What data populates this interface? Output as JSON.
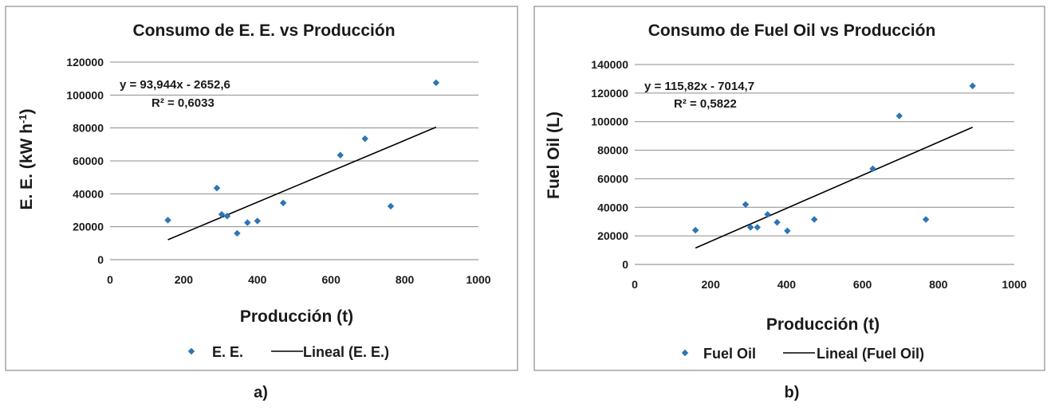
{
  "chart_data": [
    {
      "type": "scatter",
      "panel_label": "a)",
      "title": "Consumo de E. E. vs Producción",
      "xlabel": "Producción (t)",
      "ylabel_main": "E. E. (kW h",
      "ylabel_sup": "-1",
      "ylabel_close": ")",
      "xlim": [
        0,
        1000
      ],
      "ylim": [
        0,
        120000
      ],
      "xticks": [
        0,
        200,
        400,
        600,
        800,
        1000
      ],
      "yticks": [
        0,
        20000,
        40000,
        60000,
        80000,
        100000,
        120000
      ],
      "grid": "horizontal",
      "legend": "bottom",
      "series": [
        {
          "name": "E. E.",
          "marker_color": "#2e75b6",
          "points": [
            [
              157,
              24000
            ],
            [
              290,
              43500
            ],
            [
              303,
              27500
            ],
            [
              318,
              26500
            ],
            [
              345,
              16000
            ],
            [
              373,
              22500
            ],
            [
              400,
              23500
            ],
            [
              470,
              34500
            ],
            [
              625,
              63500
            ],
            [
              692,
              73500
            ],
            [
              762,
              32500
            ],
            [
              885,
              107500
            ]
          ]
        }
      ],
      "trendline": {
        "name": "Lineal (E. E.)",
        "slope": 93.944,
        "intercept": -2652.6,
        "x_range": [
          157,
          885
        ],
        "equation": "y = 93,944x  - 2652,6",
        "r2": "R² = 0,6033"
      }
    },
    {
      "type": "scatter",
      "panel_label": "b)",
      "title": "Consumo de Fuel Oil vs Producción",
      "xlabel": "Producción (t)",
      "ylabel": "Fuel  Oil (L)",
      "xlim": [
        0,
        1000
      ],
      "ylim": [
        0,
        140000
      ],
      "xticks": [
        0,
        200,
        400,
        600,
        800,
        1000
      ],
      "yticks": [
        0,
        20000,
        40000,
        60000,
        80000,
        100000,
        120000,
        140000
      ],
      "grid": "horizontal",
      "legend": "bottom",
      "series": [
        {
          "name": "Fuel Oil",
          "marker_color": "#2e75b6",
          "points": [
            [
              160,
              24000
            ],
            [
              292,
              42000
            ],
            [
              305,
              26000
            ],
            [
              323,
              26000
            ],
            [
              350,
              35000
            ],
            [
              375,
              29500
            ],
            [
              402,
              23500
            ],
            [
              473,
              31500
            ],
            [
              627,
              67000
            ],
            [
              697,
              104000
            ],
            [
              767,
              31500
            ],
            [
              890,
              125000
            ]
          ]
        }
      ],
      "trendline": {
        "name": "Lineal (Fuel Oil)",
        "slope": 115.82,
        "intercept": -7014.7,
        "x_range": [
          160,
          890
        ],
        "equation": "y = 115,82x - 7014,7",
        "r2": "R² = 0,5822"
      }
    }
  ]
}
